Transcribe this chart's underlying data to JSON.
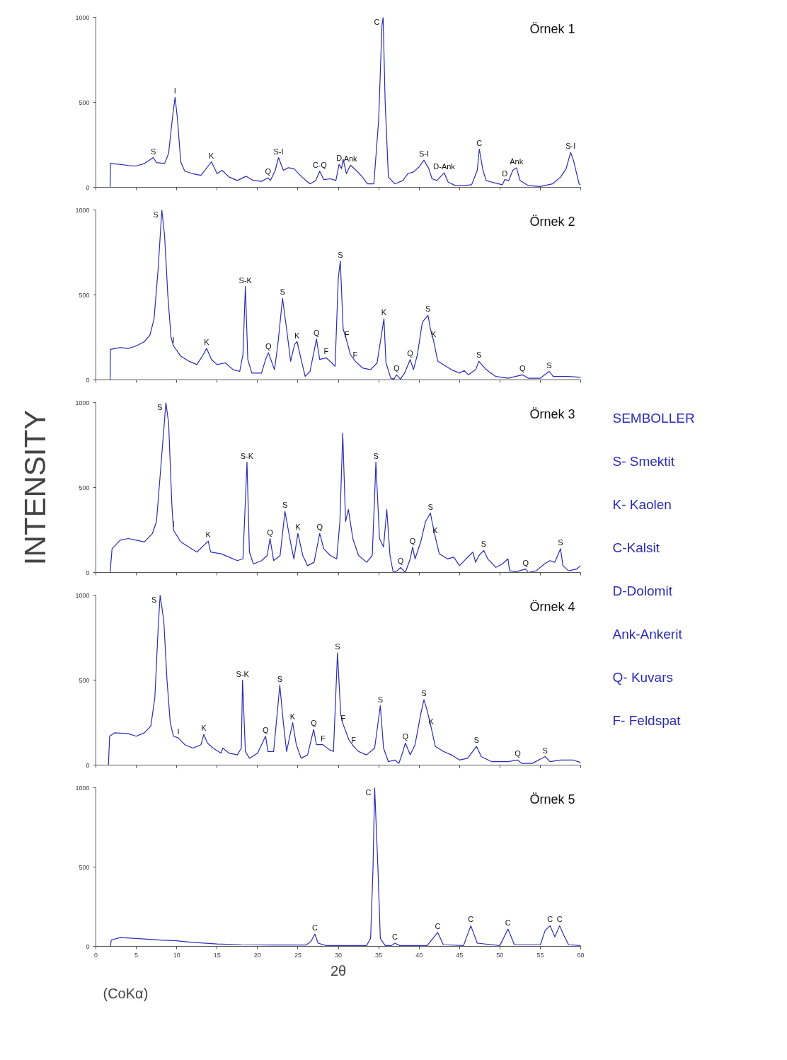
{
  "chart_data": [
    {
      "type": "line",
      "title": "Örnek 1",
      "color": "#2b2bb5",
      "xlim": [
        0,
        60
      ],
      "ylim": [
        0,
        1000
      ],
      "xticks": [
        0,
        5,
        10,
        15,
        20,
        25,
        30,
        35,
        40,
        45,
        50,
        55,
        60
      ],
      "yticks": [
        0,
        500,
        1000
      ],
      "tick_labels": "y",
      "x": [
        1.76,
        1.8,
        3,
        4,
        5,
        6,
        7.1,
        7.5,
        8.5,
        9,
        9.5,
        9.8,
        10.1,
        10.5,
        11,
        12,
        13,
        14.3,
        15,
        15.6,
        16.5,
        17.5,
        18.6,
        19.5,
        20.5,
        21.3,
        21.6,
        22.2,
        22.6,
        23.2,
        23.8,
        24.5,
        25.5,
        26.5,
        27.2,
        27.7,
        28.2,
        29,
        29.7,
        30.1,
        30.4,
        30.6,
        31,
        31.5,
        32.2,
        33,
        33.6,
        34.4,
        35.0,
        35.4,
        35.55,
        35.8,
        36.2,
        37,
        38,
        38.6,
        39.3,
        40,
        40.6,
        41.2,
        41.6,
        42.2,
        43.1,
        43.6,
        44.5,
        45.5,
        46.5,
        47.2,
        47.45,
        47.9,
        48.3,
        49,
        50.3,
        50.6,
        51.1,
        51.6,
        52.05,
        52.5,
        53.5,
        55,
        56.5,
        57.5,
        58.2,
        58.75,
        59.1,
        59.5,
        59.8,
        60
      ],
      "values": [
        0,
        140,
        135,
        128,
        125,
        140,
        175,
        145,
        140,
        200,
        420,
        530,
        400,
        150,
        95,
        80,
        70,
        150,
        80,
        100,
        60,
        40,
        65,
        40,
        35,
        55,
        40,
        100,
        175,
        100,
        115,
        110,
        60,
        20,
        40,
        95,
        45,
        50,
        40,
        135,
        110,
        165,
        80,
        130,
        100,
        60,
        20,
        20,
        400,
        950,
        1000,
        500,
        60,
        20,
        40,
        80,
        90,
        120,
        160,
        110,
        50,
        40,
        85,
        30,
        10,
        10,
        15,
        100,
        225,
        100,
        40,
        30,
        15,
        45,
        40,
        100,
        115,
        40,
        10,
        5,
        20,
        60,
        110,
        205,
        160,
        80,
        20,
        15
      ],
      "annotations": [
        {
          "text": "S",
          "x": 7.1,
          "y": 175
        },
        {
          "text": "I",
          "x": 9.8,
          "y": 530
        },
        {
          "text": "K",
          "x": 14.3,
          "y": 150
        },
        {
          "text": "Q",
          "x": 21.3,
          "y": 55
        },
        {
          "text": "S-I",
          "x": 22.6,
          "y": 175
        },
        {
          "text": "C-Q",
          "x": 27.7,
          "y": 95
        },
        {
          "text": "D",
          "x": 30.1,
          "y": 135
        },
        {
          "text": "Ank",
          "x": 31.5,
          "y": 130
        },
        {
          "text": "C",
          "x": 35.55,
          "y": 1000
        },
        {
          "text": "S-I",
          "x": 40.6,
          "y": 160
        },
        {
          "text": "D-Ank",
          "x": 43.1,
          "y": 85
        },
        {
          "text": "C",
          "x": 47.45,
          "y": 225
        },
        {
          "text": "D",
          "x": 50.6,
          "y": 45
        },
        {
          "text": "Ank",
          "x": 52.05,
          "y": 115
        },
        {
          "text": "S-I",
          "x": 58.75,
          "y": 205
        }
      ]
    },
    {
      "type": "line",
      "title": "Örnek 2",
      "color": "#2b2bb5",
      "xlim": [
        0,
        60
      ],
      "ylim": [
        0,
        1000
      ],
      "xticks": [
        0,
        5,
        10,
        15,
        20,
        25,
        30,
        35,
        40,
        45,
        50,
        55,
        60
      ],
      "yticks": [
        0,
        500,
        1000
      ],
      "tick_labels": "y",
      "x": [
        1.76,
        1.8,
        3,
        4,
        5,
        6,
        6.7,
        7.2,
        7.7,
        8.16,
        8.5,
        8.9,
        9.3,
        9.6,
        10.5,
        11.5,
        12.5,
        13.3,
        13.7,
        14.3,
        15,
        16,
        17,
        17.8,
        18.2,
        18.5,
        18.8,
        19.3,
        20.5,
        21.0,
        21.35,
        22.1,
        22.5,
        23.1,
        23.6,
        24.1,
        24.6,
        24.9,
        25.4,
        25.9,
        26.5,
        27.3,
        27.7,
        28.5,
        29.2,
        29.6,
        30.0,
        30.25,
        30.6,
        31.05,
        31.5,
        32.1,
        33,
        34,
        34.8,
        35.65,
        35.9,
        36.5,
        36.9,
        37.2,
        37.7,
        38.2,
        38.9,
        39.3,
        39.8,
        40.4,
        41.1,
        41.4,
        41.8,
        42.3,
        43,
        44,
        45,
        45.6,
        46.1,
        47,
        47.4,
        48.3,
        49.5,
        51,
        52.8,
        53.5,
        55,
        56.1,
        56.6,
        57.5,
        58.5,
        60
      ],
      "values": [
        0,
        180,
        190,
        185,
        200,
        225,
        265,
        360,
        650,
        1000,
        850,
        500,
        250,
        200,
        140,
        110,
        90,
        150,
        185,
        120,
        90,
        100,
        60,
        50,
        150,
        550,
        120,
        40,
        40,
        120,
        160,
        60,
        200,
        480,
        300,
        110,
        210,
        225,
        120,
        20,
        50,
        240,
        120,
        130,
        100,
        80,
        600,
        700,
        300,
        230,
        150,
        110,
        70,
        60,
        100,
        360,
        100,
        10,
        5,
        30,
        5,
        40,
        120,
        60,
        150,
        340,
        380,
        300,
        230,
        110,
        90,
        60,
        40,
        55,
        30,
        60,
        110,
        60,
        20,
        10,
        30,
        10,
        10,
        50,
        20,
        20,
        20,
        15
      ],
      "annotations": [
        {
          "text": "S",
          "x": 8.16,
          "y": 1000
        },
        {
          "text": "I",
          "x": 9.6,
          "y": 200
        },
        {
          "text": "K",
          "x": 13.7,
          "y": 185
        },
        {
          "text": "S-K",
          "x": 18.5,
          "y": 550
        },
        {
          "text": "Q",
          "x": 21.35,
          "y": 160
        },
        {
          "text": "S",
          "x": 23.1,
          "y": 480
        },
        {
          "text": "K",
          "x": 24.9,
          "y": 225
        },
        {
          "text": "Q",
          "x": 27.3,
          "y": 240
        },
        {
          "text": "F",
          "x": 28.5,
          "y": 130
        },
        {
          "text": "S",
          "x": 30.25,
          "y": 700
        },
        {
          "text": "F",
          "x": 31.05,
          "y": 230
        },
        {
          "text": "F",
          "x": 32.1,
          "y": 110
        },
        {
          "text": "K",
          "x": 35.65,
          "y": 360
        },
        {
          "text": "Q",
          "x": 37.2,
          "y": 30
        },
        {
          "text": "Q",
          "x": 38.9,
          "y": 120
        },
        {
          "text": "S",
          "x": 41.1,
          "y": 380
        },
        {
          "text": "K",
          "x": 41.8,
          "y": 230
        },
        {
          "text": "S",
          "x": 47.4,
          "y": 110
        },
        {
          "text": "Q",
          "x": 52.8,
          "y": 30
        },
        {
          "text": "S",
          "x": 56.1,
          "y": 50
        }
      ]
    },
    {
      "type": "line",
      "title": "Örnek 3",
      "ylabel": "INTENSITY",
      "color": "#2b2bb5",
      "xlim": [
        0,
        60
      ],
      "ylim": [
        0,
        1000
      ],
      "xticks": [
        0,
        5,
        10,
        15,
        20,
        25,
        30,
        35,
        40,
        45,
        50,
        55,
        60
      ],
      "yticks": [
        0,
        500,
        1000
      ],
      "tick_labels": "y",
      "x": [
        1.76,
        2,
        3,
        4,
        5,
        6,
        7,
        7.5,
        8,
        8.5,
        8.66,
        9.0,
        9.4,
        9.6,
        10.5,
        11.5,
        12.5,
        13.9,
        14.2,
        15.5,
        16.5,
        17.5,
        18.2,
        18.7,
        19,
        19.5,
        20.5,
        21.2,
        21.55,
        22,
        22.8,
        23.4,
        24,
        24.5,
        25,
        25.6,
        26.2,
        27,
        27.7,
        28.2,
        29,
        29.8,
        30.2,
        30.55,
        30.9,
        31.25,
        31.8,
        32.5,
        33.5,
        34.2,
        34.5,
        34.65,
        35.1,
        35.6,
        36.0,
        36.4,
        36.8,
        37.3,
        37.7,
        38.3,
        38.9,
        39.2,
        39.5,
        40.2,
        40.8,
        41.4,
        41.6,
        42,
        42.5,
        43.5,
        44.3,
        45,
        45.8,
        46.65,
        47.0,
        47.4,
        48.0,
        48.5,
        49.5,
        50.3,
        51.0,
        51.2,
        52,
        53.2,
        53.5,
        54.5,
        55.5,
        56.2,
        56.8,
        57.5,
        57.8,
        58.5,
        59.5,
        60
      ],
      "values": [
        0,
        140,
        190,
        200,
        190,
        180,
        230,
        300,
        600,
        900,
        1000,
        880,
        400,
        250,
        180,
        150,
        120,
        185,
        120,
        110,
        90,
        70,
        80,
        650,
        120,
        50,
        70,
        100,
        200,
        70,
        100,
        360,
        200,
        80,
        230,
        100,
        40,
        60,
        230,
        140,
        100,
        80,
        300,
        820,
        300,
        370,
        200,
        100,
        60,
        100,
        450,
        650,
        200,
        150,
        370,
        100,
        0,
        10,
        30,
        0,
        80,
        150,
        80,
        180,
        300,
        350,
        300,
        210,
        110,
        80,
        90,
        40,
        80,
        120,
        60,
        100,
        130,
        80,
        30,
        50,
        80,
        10,
        5,
        20,
        0,
        10,
        50,
        70,
        60,
        140,
        40,
        10,
        20,
        40
      ],
      "annotations": [
        {
          "text": "S",
          "x": 8.66,
          "y": 1000
        },
        {
          "text": "I",
          "x": 9.6,
          "y": 250
        },
        {
          "text": "K",
          "x": 13.9,
          "y": 185
        },
        {
          "text": "S-K",
          "x": 18.7,
          "y": 650
        },
        {
          "text": "Q",
          "x": 21.55,
          "y": 200
        },
        {
          "text": "S",
          "x": 23.4,
          "y": 360
        },
        {
          "text": "K",
          "x": 25,
          "y": 230
        },
        {
          "text": "Q",
          "x": 27.7,
          "y": 230
        },
        {
          "text": "S",
          "x": 34.65,
          "y": 650
        },
        {
          "text": "Q",
          "x": 37.7,
          "y": 30
        },
        {
          "text": "Q",
          "x": 39.2,
          "y": 150
        },
        {
          "text": "S",
          "x": 41.4,
          "y": 350
        },
        {
          "text": "K",
          "x": 42,
          "y": 210
        },
        {
          "text": "S",
          "x": 48.0,
          "y": 130
        },
        {
          "text": "Q",
          "x": 53.2,
          "y": 20
        },
        {
          "text": "S",
          "x": 57.5,
          "y": 140
        }
      ]
    },
    {
      "type": "line",
      "title": "Örnek 4",
      "color": "#2b2bb5",
      "xlim": [
        0,
        60
      ],
      "ylim": [
        0,
        1000
      ],
      "xticks": [
        0,
        5,
        10,
        15,
        20,
        25,
        30,
        35,
        40,
        45,
        50,
        55,
        60
      ],
      "yticks": [
        0,
        500,
        1000
      ],
      "tick_labels": "y",
      "x": [
        1.55,
        1.7,
        2.3,
        4,
        5,
        6,
        6.8,
        7.3,
        7.7,
        7.95,
        8.4,
        8.8,
        9.2,
        9.6,
        10.2,
        11,
        12,
        13.0,
        13.35,
        13.8,
        14.5,
        15.5,
        15.7,
        16.5,
        17.5,
        18.0,
        18.15,
        18.5,
        19,
        20,
        21.0,
        21.3,
        22,
        22.76,
        23.2,
        23.6,
        24.35,
        24.8,
        25.4,
        26.2,
        26.95,
        27.3,
        28.1,
        28.9,
        29.4,
        29.9,
        30.3,
        30.6,
        31.3,
        31.9,
        32.5,
        33.5,
        34.5,
        35.2,
        35.6,
        36.2,
        37,
        37.5,
        38.0,
        38.3,
        38.9,
        39.5,
        40.2,
        40.6,
        41,
        41.5,
        42,
        43,
        44,
        45,
        46,
        47.1,
        47.7,
        49,
        50,
        51,
        52.2,
        52.7,
        54,
        55.6,
        56.2,
        57.5,
        59,
        60
      ],
      "values": [
        0,
        170,
        190,
        185,
        170,
        190,
        230,
        400,
        800,
        1000,
        850,
        500,
        250,
        170,
        160,
        120,
        100,
        120,
        180,
        130,
        100,
        70,
        100,
        70,
        60,
        100,
        500,
        80,
        40,
        70,
        170,
        80,
        80,
        470,
        250,
        80,
        250,
        120,
        40,
        60,
        210,
        120,
        120,
        90,
        80,
        660,
        300,
        240,
        150,
        110,
        80,
        60,
        100,
        350,
        100,
        20,
        30,
        10,
        80,
        130,
        60,
        120,
        300,
        385,
        320,
        220,
        110,
        80,
        60,
        30,
        40,
        110,
        50,
        20,
        20,
        20,
        30,
        10,
        10,
        50,
        20,
        30,
        30,
        15
      ],
      "annotations": [
        {
          "text": "S",
          "x": 7.95,
          "y": 1000
        },
        {
          "text": "I",
          "x": 10.2,
          "y": 160
        },
        {
          "text": "K",
          "x": 13.35,
          "y": 180
        },
        {
          "text": "S-K",
          "x": 18.15,
          "y": 500
        },
        {
          "text": "Q",
          "x": 21.0,
          "y": 170
        },
        {
          "text": "S",
          "x": 22.76,
          "y": 470
        },
        {
          "text": "K",
          "x": 24.35,
          "y": 250
        },
        {
          "text": "Q",
          "x": 26.95,
          "y": 210
        },
        {
          "text": "F",
          "x": 28.1,
          "y": 120
        },
        {
          "text": "S",
          "x": 29.9,
          "y": 660
        },
        {
          "text": "F",
          "x": 30.6,
          "y": 240
        },
        {
          "text": "F",
          "x": 31.9,
          "y": 110
        },
        {
          "text": "S",
          "x": 35.2,
          "y": 350
        },
        {
          "text": "Q",
          "x": 38.3,
          "y": 130
        },
        {
          "text": "S",
          "x": 40.6,
          "y": 385
        },
        {
          "text": "K",
          "x": 41.5,
          "y": 220
        },
        {
          "text": "S",
          "x": 47.1,
          "y": 110
        },
        {
          "text": "Q",
          "x": 52.2,
          "y": 30
        },
        {
          "text": "S",
          "x": 55.6,
          "y": 50
        }
      ]
    },
    {
      "type": "line",
      "title": "Örnek 5",
      "xlabel": "2θ",
      "color": "#2b2bb5",
      "xlim": [
        0,
        60
      ],
      "ylim": [
        0,
        1000
      ],
      "xticks": [
        0,
        5,
        10,
        15,
        20,
        25,
        30,
        35,
        40,
        45,
        50,
        55,
        60
      ],
      "yticks": [
        0,
        500,
        1000
      ],
      "x": [
        1.8,
        1.9,
        3,
        5,
        8,
        10,
        12,
        15,
        18,
        22,
        26,
        26.6,
        27.1,
        27.5,
        28.5,
        33.5,
        34.0,
        34.3,
        34.5,
        34.9,
        35.2,
        35.8,
        36.6,
        37.0,
        37.6,
        41,
        42.3,
        43,
        45.5,
        46.4,
        47.2,
        50,
        51.0,
        51.8,
        55,
        55.6,
        56.2,
        56.8,
        57.4,
        57.9,
        58.5,
        60
      ],
      "values": [
        0,
        40,
        55,
        50,
        40,
        35,
        25,
        15,
        10,
        8,
        8,
        30,
        77,
        20,
        5,
        5,
        50,
        500,
        1000,
        500,
        50,
        5,
        5,
        20,
        5,
        5,
        88,
        10,
        5,
        130,
        20,
        5,
        109,
        10,
        10,
        100,
        130,
        60,
        130,
        70,
        10,
        5
      ],
      "annotations": [
        "(CoKα)",
        {
          "text": "C",
          "x": 27.1,
          "y": 77
        },
        {
          "text": "C",
          "x": 34.5,
          "y": 1000
        },
        {
          "text": "C",
          "x": 37.0,
          "y": 20
        },
        {
          "text": "C",
          "x": 42.3,
          "y": 88
        },
        {
          "text": "C",
          "x": 46.4,
          "y": 130
        },
        {
          "text": "C",
          "x": 51.0,
          "y": 109
        },
        {
          "text": "C",
          "x": 56.2,
          "y": 130
        },
        {
          "text": "C",
          "x": 57.4,
          "y": 130
        }
      ]
    },
    {
      "type": "other",
      "title": "SEMBOLLER",
      "annotations": [
        "S- Smektit",
        "K- Kaolen",
        "C-Kalsit",
        "D-Dolomit",
        "Ank-Ankerit",
        "Q- Kuvars",
        "F- Feldspat"
      ]
    }
  ]
}
